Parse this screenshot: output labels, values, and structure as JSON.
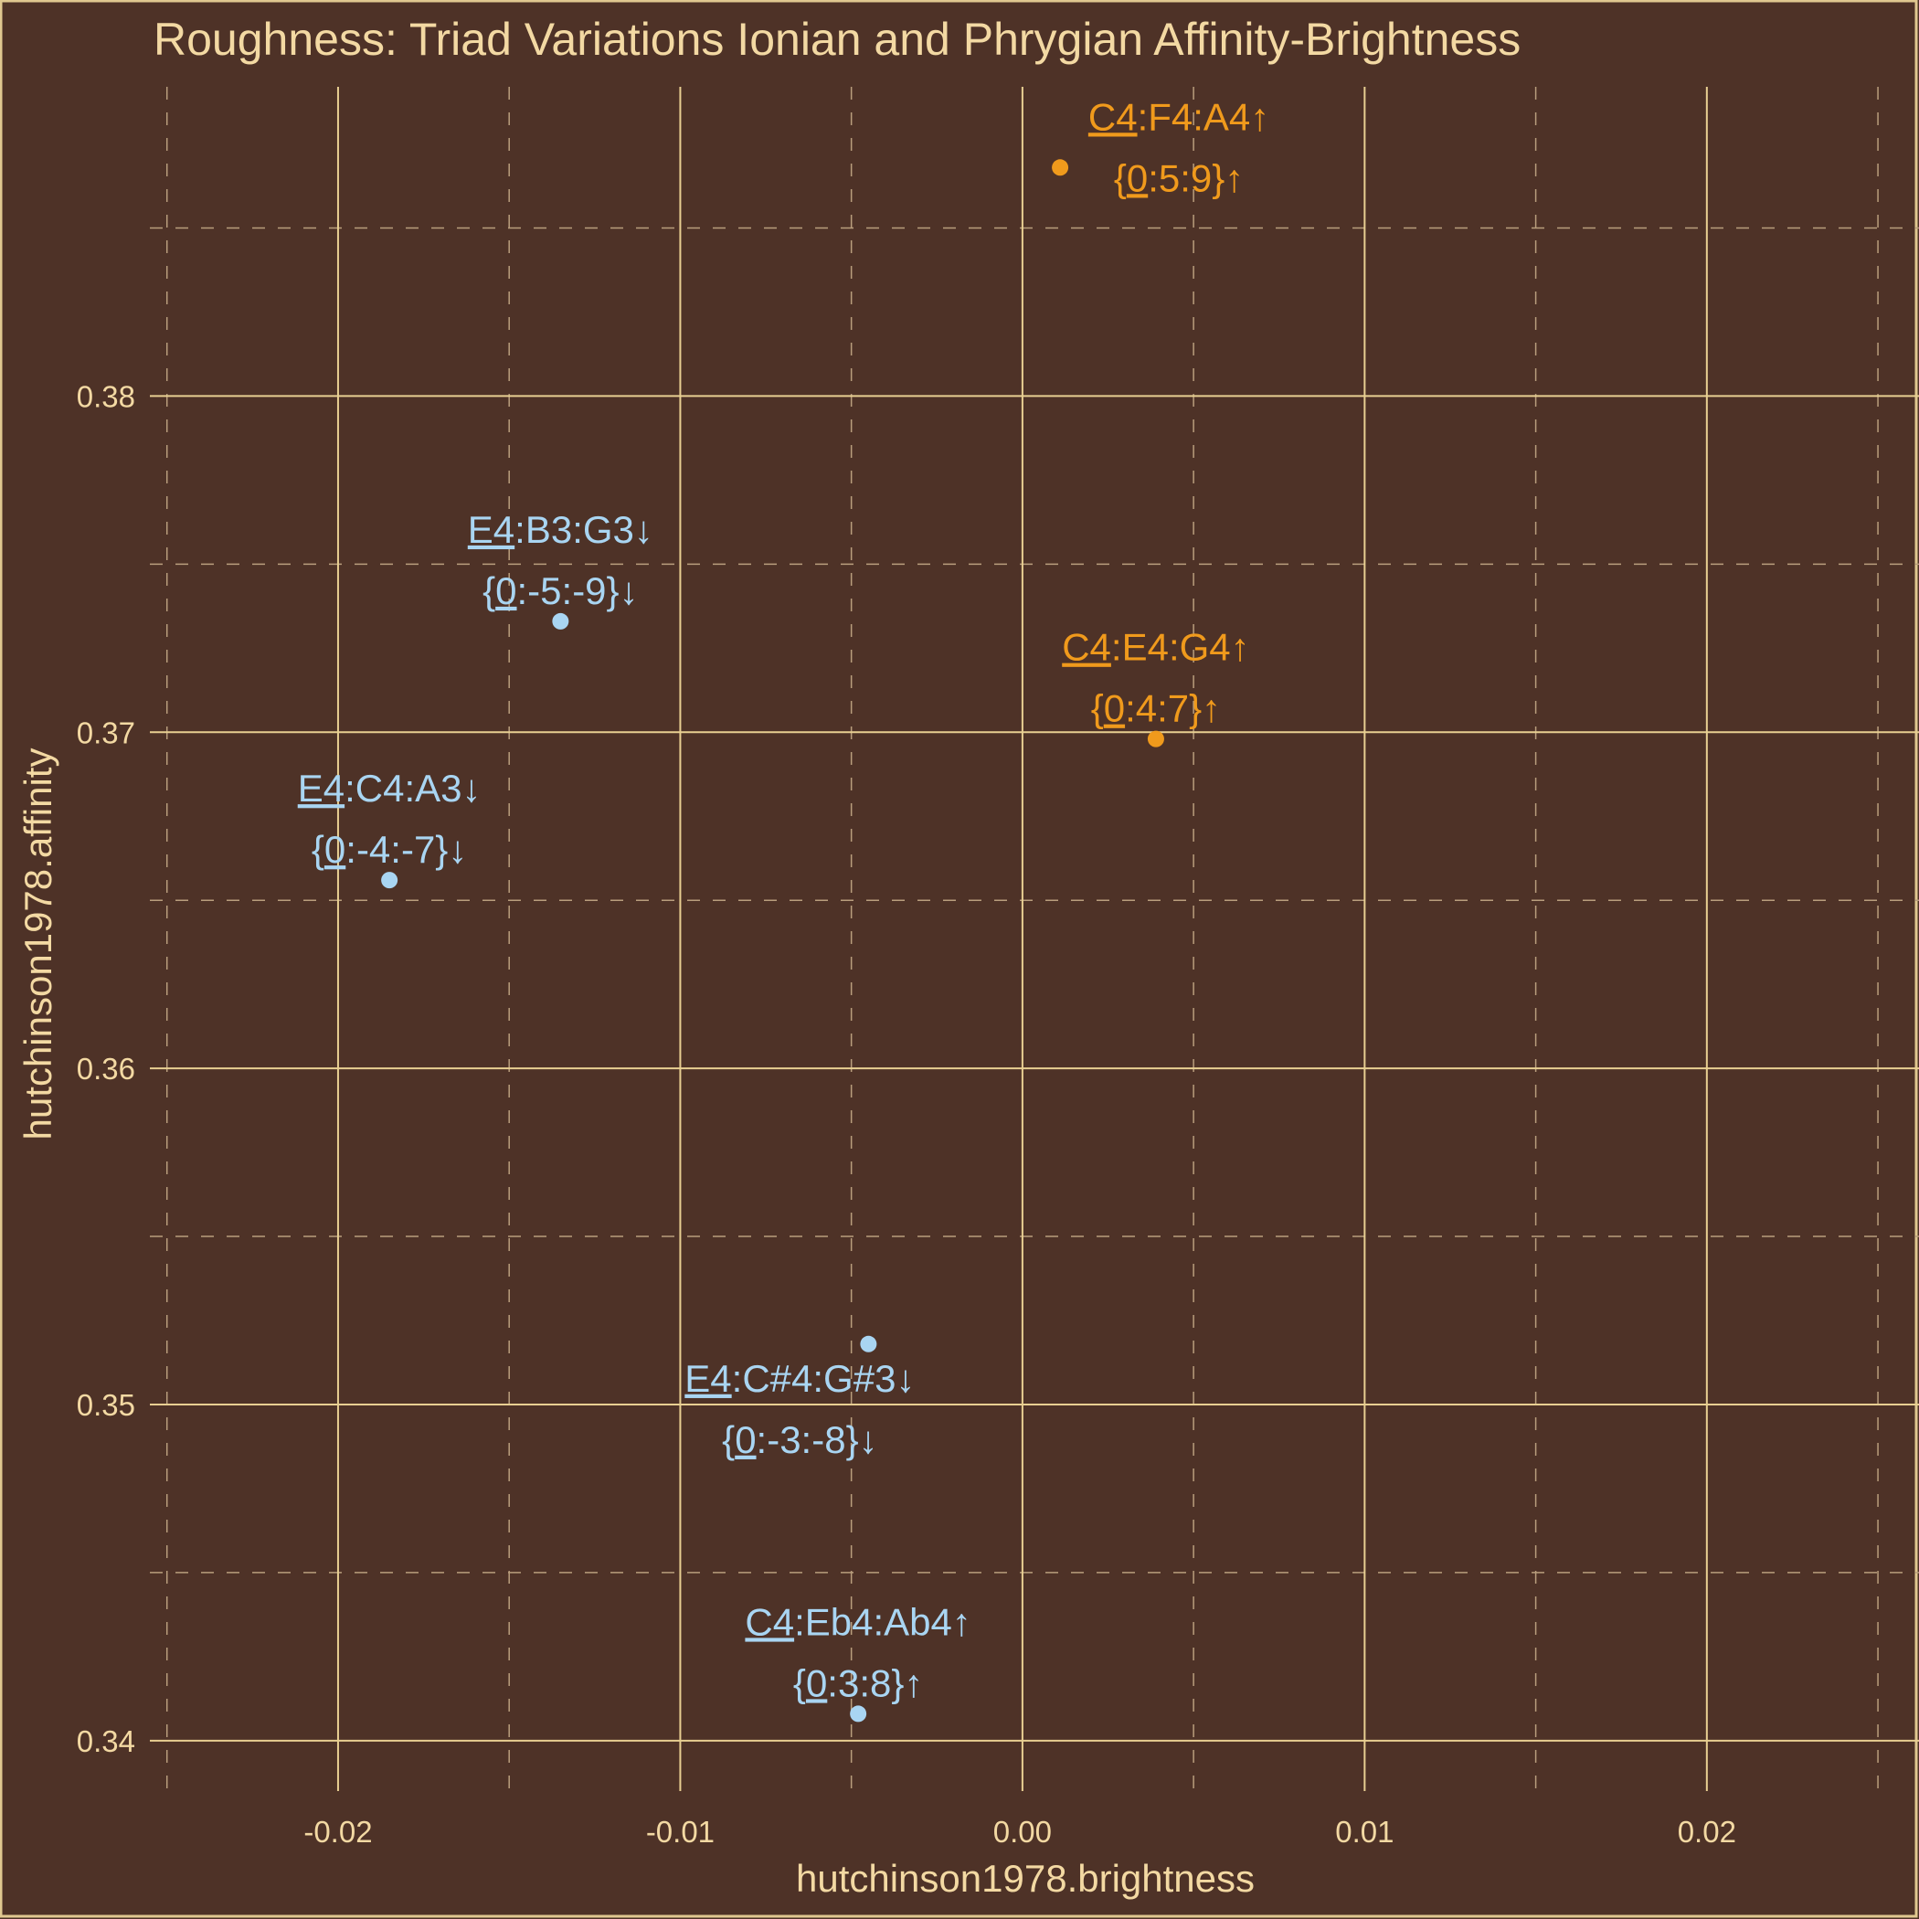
{
  "chart_data": {
    "type": "scatter",
    "title": "Roughness: Triad Variations Ionian and Phrygian Affinity-Brightness",
    "xlabel": "hutchinson1978.brightness",
    "ylabel": "hutchinson1978.affinity",
    "xlim": [
      -0.0255,
      0.0262
    ],
    "ylim": [
      0.3385,
      0.3892
    ],
    "xticks": [
      -0.02,
      -0.01,
      0.0,
      0.01,
      0.02
    ],
    "xtick_labels": [
      "-0.02",
      "-0.01",
      "0.00",
      "0.01",
      "0.02"
    ],
    "yticks": [
      0.34,
      0.35,
      0.36,
      0.37,
      0.38
    ],
    "ytick_labels": [
      "0.34",
      "0.35",
      "0.36",
      "0.37",
      "0.38"
    ],
    "grid": true,
    "colors": {
      "background": "#4e3227",
      "orange": "#f09a1c",
      "blue": "#a9d5f2"
    },
    "points": [
      {
        "x": 0.0011,
        "y": 0.3868,
        "line1": {
          "under": "C4",
          "rest": ":F4:A4↑"
        },
        "line2": {
          "pre": "{",
          "under": "0",
          "rest": ":5:9}↑"
        },
        "color": "#f09a1c",
        "label_pos": "above-right"
      },
      {
        "x": 0.0039,
        "y": 0.3698,
        "line1": {
          "under": "C4",
          "rest": ":E4:G4↑"
        },
        "line2": {
          "pre": "{",
          "under": "0",
          "rest": ":4:7}↑"
        },
        "color": "#f09a1c",
        "label_pos": "above"
      },
      {
        "x": -0.0135,
        "y": 0.3733,
        "line1": {
          "under": "E4",
          "rest": ":B3:G3↓"
        },
        "line2": {
          "pre": "{",
          "under": "0",
          "rest": ":-5:-9}↓"
        },
        "color": "#a9d5f2",
        "label_pos": "above"
      },
      {
        "x": -0.0185,
        "y": 0.3656,
        "line1": {
          "under": "E4",
          "rest": ":C4:A3↓"
        },
        "line2": {
          "pre": "{",
          "under": "0",
          "rest": ":-4:-7}↓"
        },
        "color": "#a9d5f2",
        "label_pos": "above"
      },
      {
        "x": -0.0045,
        "y": 0.3518,
        "line1": {
          "under": "E4",
          "rest": ":C#4:G#3↓"
        },
        "line2": {
          "pre": "{",
          "under": "0",
          "rest": ":-3:-8}↓"
        },
        "color": "#a9d5f2",
        "label_pos": "below"
      },
      {
        "x": -0.0048,
        "y": 0.3408,
        "line1": {
          "under": "C4",
          "rest": ":Eb4:Ab4↑"
        },
        "line2": {
          "pre": "{",
          "under": "0",
          "rest": ":3:8}↑"
        },
        "color": "#a9d5f2",
        "label_pos": "above"
      }
    ]
  }
}
